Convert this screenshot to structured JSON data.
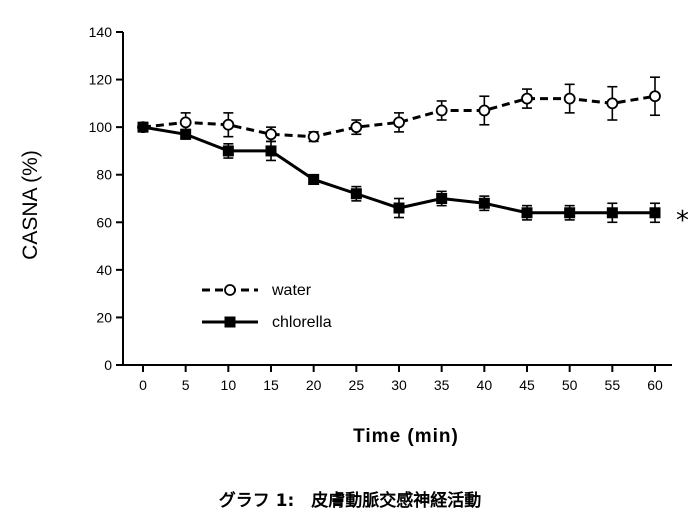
{
  "caption": "グラフ 1:　皮膚動脈交感神経活動",
  "chart_data": {
    "type": "line",
    "title": "",
    "xlabel": "Time (min)",
    "ylabel": "CASNA (%)",
    "x": [
      0,
      5,
      10,
      15,
      20,
      25,
      30,
      35,
      40,
      45,
      50,
      55,
      60
    ],
    "xlim": [
      0,
      60
    ],
    "ylim": [
      0,
      140
    ],
    "yticks": [
      0,
      20,
      40,
      60,
      80,
      100,
      120,
      140
    ],
    "grid": false,
    "legend_position": "lower-left",
    "series": [
      {
        "name": "water",
        "style": "dashed",
        "marker": "open-circle",
        "values": [
          100,
          102,
          101,
          97,
          96,
          100,
          102,
          107,
          107,
          112,
          112,
          110,
          113
        ],
        "errors": [
          1,
          4,
          5,
          3,
          2,
          3,
          4,
          4,
          6,
          4,
          6,
          7,
          8
        ]
      },
      {
        "name": "chlorella",
        "style": "solid",
        "marker": "filled-square",
        "values": [
          100,
          97,
          90,
          90,
          78,
          72,
          66,
          70,
          68,
          64,
          64,
          64,
          64
        ],
        "errors": [
          1,
          2,
          3,
          4,
          2,
          3,
          4,
          3,
          3,
          3,
          3,
          4,
          4
        ]
      }
    ],
    "annotations": [
      {
        "text": "*",
        "anchor_series": "chlorella",
        "anchor_x": 60
      }
    ]
  }
}
